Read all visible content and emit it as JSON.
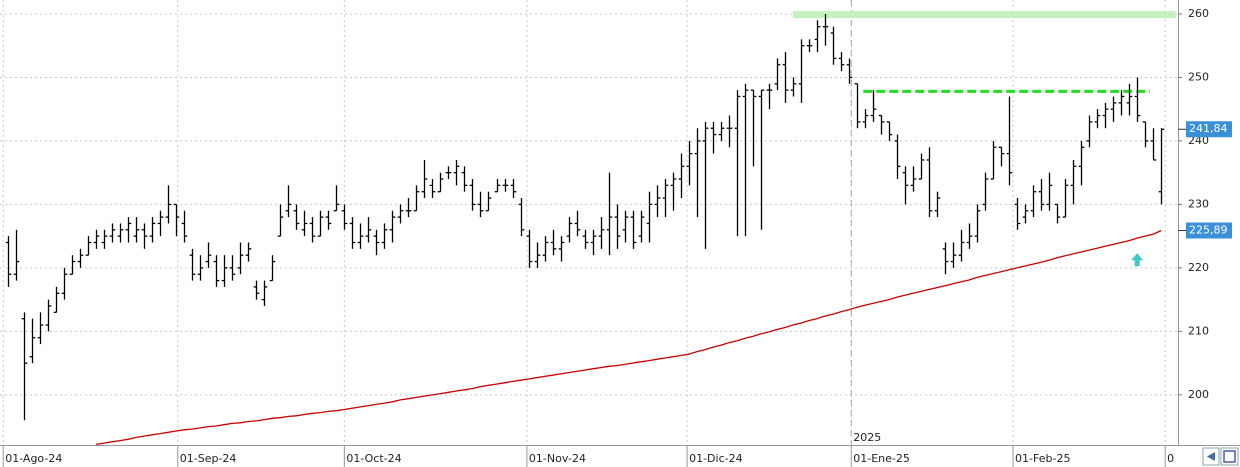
{
  "chart_data": {
    "type": "ohlc",
    "ylim": [
      192.1,
      262.2
    ],
    "yticks": [
      200,
      210,
      220,
      230,
      240,
      250,
      260
    ],
    "xlim": [
      -1,
      146.1
    ],
    "xticks": [
      {
        "value": -0.6,
        "label": "01-Ago-24"
      },
      {
        "value": 21.2,
        "label": "01-Sep-24"
      },
      {
        "value": 42,
        "label": "01-Oct-24"
      },
      {
        "value": 64.8,
        "label": "01-Nov-24"
      },
      {
        "value": 84.8,
        "label": "01-Dic-24"
      },
      {
        "value": 105.3,
        "label": "01-Ene-25"
      },
      {
        "value": 125.5,
        "label": "01-Feb-25"
      },
      {
        "value": 144.5,
        "label": "0"
      }
    ],
    "grid": true,
    "color": "#000000",
    "ohlc": [
      [
        224,
        225,
        217,
        219
      ],
      [
        219,
        226,
        218,
        221
      ],
      [
        212,
        213,
        196,
        205
      ],
      [
        206,
        212,
        205,
        209
      ],
      [
        209,
        213,
        208,
        211
      ],
      [
        211,
        215,
        210,
        214
      ],
      [
        213,
        217,
        213,
        216
      ],
      [
        216,
        220,
        215,
        219
      ],
      [
        219,
        222,
        219,
        221
      ],
      [
        221,
        223,
        220,
        222
      ],
      [
        222,
        225,
        222,
        224
      ],
      [
        224,
        226,
        223,
        225
      ],
      [
        224,
        226,
        223,
        225
      ],
      [
        225,
        227,
        224,
        226
      ],
      [
        225,
        227,
        224,
        226
      ],
      [
        226,
        228,
        224,
        227
      ],
      [
        225,
        228,
        224,
        226
      ],
      [
        226,
        227,
        223,
        225
      ],
      [
        225,
        228,
        224,
        227
      ],
      [
        227,
        229,
        225,
        228
      ],
      [
        228,
        233,
        227,
        230
      ],
      [
        230,
        230,
        225,
        228
      ],
      [
        227,
        229,
        224,
        225
      ],
      [
        222,
        223,
        218,
        219
      ],
      [
        219,
        222,
        218,
        220
      ],
      [
        221,
        224,
        220,
        222
      ],
      [
        221,
        222,
        217,
        218
      ],
      [
        218,
        222,
        217,
        220
      ],
      [
        220,
        222,
        218,
        219
      ],
      [
        220,
        224,
        219,
        222
      ],
      [
        222,
        224,
        221,
        223
      ],
      [
        217,
        218,
        215,
        216
      ],
      [
        215,
        218,
        214,
        217
      ],
      [
        218,
        222,
        218,
        221
      ],
      [
        225,
        230,
        225,
        228
      ],
      [
        229,
        233,
        228,
        230
      ],
      [
        229,
        230,
        226,
        227
      ],
      [
        226,
        229,
        225,
        227
      ],
      [
        227,
        228,
        224,
        225
      ],
      [
        225,
        229,
        225,
        228
      ],
      [
        228,
        229,
        226,
        227
      ],
      [
        229,
        233,
        229,
        230
      ],
      [
        229,
        230,
        226,
        227
      ],
      [
        227,
        228,
        223,
        224
      ],
      [
        224,
        227,
        223,
        225
      ],
      [
        225,
        228,
        224,
        226
      ],
      [
        225,
        226,
        222,
        224
      ],
      [
        224,
        227,
        223,
        226
      ],
      [
        226,
        229,
        224,
        228
      ],
      [
        228,
        230,
        227,
        229
      ],
      [
        229,
        231,
        228,
        229
      ],
      [
        229,
        233,
        229,
        232
      ],
      [
        232,
        237,
        231,
        234
      ],
      [
        233,
        234,
        231,
        232
      ],
      [
        232,
        235,
        232,
        234
      ],
      [
        235,
        236,
        234,
        235
      ],
      [
        235,
        237,
        233,
        236
      ],
      [
        235,
        236,
        232,
        233
      ],
      [
        233,
        234,
        229,
        230
      ],
      [
        230,
        232,
        228,
        229
      ],
      [
        229,
        232,
        229,
        231
      ],
      [
        232,
        234,
        232,
        233
      ],
      [
        233,
        234,
        232,
        233
      ],
      [
        233,
        234,
        231,
        232
      ],
      [
        230,
        231,
        225,
        226
      ],
      [
        225,
        226,
        220,
        221
      ],
      [
        221,
        224,
        220,
        222
      ],
      [
        222,
        225,
        221,
        224
      ],
      [
        224,
        226,
        222,
        223
      ],
      [
        223,
        225,
        221,
        224
      ],
      [
        225,
        228,
        224,
        227
      ],
      [
        227,
        229,
        225,
        226
      ],
      [
        225,
        226,
        223,
        224
      ],
      [
        224,
        226,
        222,
        225
      ],
      [
        225,
        228,
        223,
        226
      ],
      [
        226,
        235,
        222,
        228
      ],
      [
        228,
        230,
        223,
        225
      ],
      [
        226,
        229,
        224,
        228
      ],
      [
        228,
        229,
        223,
        224
      ],
      [
        225,
        229,
        224,
        228
      ],
      [
        227,
        232,
        224,
        230
      ],
      [
        230,
        233,
        228,
        231
      ],
      [
        231,
        234,
        228,
        233
      ],
      [
        233,
        235,
        229,
        234
      ],
      [
        234,
        238,
        231,
        236
      ],
      [
        236,
        240,
        233,
        238
      ],
      [
        238,
        242,
        228,
        240
      ],
      [
        240,
        243,
        223,
        242
      ],
      [
        242,
        243,
        238,
        241
      ],
      [
        241,
        243,
        240,
        242
      ],
      [
        242,
        244,
        239,
        242
      ],
      [
        242,
        248,
        225,
        247
      ],
      [
        247,
        249,
        225,
        248
      ],
      [
        248,
        248,
        236,
        247
      ],
      [
        247,
        248,
        226,
        248
      ],
      [
        248,
        249,
        245,
        248
      ],
      [
        249,
        253,
        248,
        252
      ],
      [
        252,
        254,
        246,
        248
      ],
      [
        248,
        250,
        247,
        249
      ],
      [
        249,
        256,
        246,
        255
      ],
      [
        255,
        256,
        254,
        255
      ],
      [
        256,
        259,
        254,
        258
      ],
      [
        258,
        260,
        255,
        258
      ],
      [
        257,
        258,
        252,
        253
      ],
      [
        253,
        254,
        251,
        252
      ],
      [
        252,
        253,
        249,
        250
      ],
      [
        249,
        249,
        242,
        243
      ],
      [
        243,
        245,
        242,
        244
      ],
      [
        244,
        248,
        243,
        245
      ],
      [
        244,
        244,
        241,
        243
      ],
      [
        243,
        243,
        240,
        241
      ],
      [
        240,
        241,
        234,
        236
      ],
      [
        235,
        236,
        230,
        233
      ],
      [
        233,
        236,
        232,
        234
      ],
      [
        234,
        238,
        234,
        237
      ],
      [
        237,
        239,
        228,
        229
      ],
      [
        229,
        232,
        228,
        231
      ],
      [
        223,
        224,
        219,
        221
      ],
      [
        221,
        224,
        220,
        222
      ],
      [
        222,
        226,
        221,
        224
      ],
      [
        224,
        227,
        223,
        225
      ],
      [
        225,
        230,
        224,
        229
      ],
      [
        230,
        235,
        229,
        234
      ],
      [
        234,
        240,
        234,
        239
      ],
      [
        239,
        239,
        236,
        238
      ],
      [
        238,
        247,
        233,
        235
      ],
      [
        230,
        231,
        226,
        227
      ],
      [
        228,
        230,
        227,
        229
      ],
      [
        229,
        233,
        228,
        232
      ],
      [
        232,
        234,
        229,
        230
      ],
      [
        230,
        235,
        229,
        233
      ],
      [
        230,
        230,
        227,
        228
      ],
      [
        228,
        234,
        228,
        233
      ],
      [
        233,
        237,
        230,
        236
      ],
      [
        236,
        240,
        233,
        239
      ],
      [
        240,
        244,
        239,
        243
      ],
      [
        243,
        245,
        242,
        244
      ],
      [
        244,
        246,
        242,
        245
      ],
      [
        245,
        247,
        243,
        246
      ],
      [
        246,
        248,
        244,
        247
      ],
      [
        246,
        249,
        244,
        247
      ],
      [
        247,
        250,
        243,
        244
      ],
      [
        243,
        243,
        239,
        240
      ],
      [
        240,
        242,
        237,
        237
      ],
      [
        232,
        242,
        230,
        241.84
      ]
    ],
    "ma": {
      "color": "#cc0000",
      "values": [
        null,
        null,
        null,
        null,
        null,
        null,
        null,
        null,
        null,
        null,
        null,
        192.2,
        192.4,
        192.6,
        192.8,
        193.0,
        193.3,
        193.5,
        193.7,
        193.9,
        194.1,
        194.3,
        194.5,
        194.6,
        194.8,
        195.0,
        195.1,
        195.3,
        195.5,
        195.6,
        195.8,
        195.9,
        196.1,
        196.3,
        196.4,
        196.6,
        196.7,
        196.9,
        197.1,
        197.2,
        197.4,
        197.5,
        197.7,
        197.9,
        198.1,
        198.3,
        198.5,
        198.7,
        198.9,
        199.2,
        199.4,
        199.6,
        199.8,
        200.0,
        200.2,
        200.4,
        200.6,
        200.8,
        201.0,
        201.3,
        201.5,
        201.7,
        201.9,
        202.1,
        202.3,
        202.5,
        202.7,
        202.9,
        203.1,
        203.3,
        203.5,
        203.7,
        203.9,
        204.1,
        204.3,
        204.5,
        204.6,
        204.8,
        205.0,
        205.2,
        205.4,
        205.6,
        205.8,
        206.0,
        206.2,
        206.4,
        206.8,
        207.1,
        207.5,
        207.8,
        208.2,
        208.5,
        208.9,
        209.2,
        209.6,
        209.9,
        210.3,
        210.6,
        211.0,
        211.3,
        211.7,
        212.0,
        212.4,
        212.7,
        213.1,
        213.4,
        213.8,
        214.1,
        214.4,
        214.7,
        215.0,
        215.4,
        215.7,
        216.0,
        216.3,
        216.6,
        216.9,
        217.2,
        217.5,
        217.8,
        218.1,
        218.5,
        218.8,
        219.1,
        219.4,
        219.7,
        220.0,
        220.3,
        220.6,
        220.9,
        221.2,
        221.6,
        221.9,
        222.2,
        222.5,
        222.8,
        223.1,
        223.4,
        223.7,
        224.0,
        224.3,
        224.7,
        225.0,
        225.3,
        225.89
      ]
    },
    "hlines": [
      {
        "value": 259.9,
        "from": 98,
        "to": 145.8,
        "style": "solid",
        "color": "#c4f2bc"
      },
      {
        "value": 247.8,
        "from": 106.8,
        "to": 142.6,
        "style": "dashed",
        "color": "#22dd22"
      }
    ],
    "price_labels": [
      {
        "value": 241.84,
        "label": "241,84",
        "color": "#3a8fd9"
      },
      {
        "value": 225.89,
        "label": "225,89",
        "color": "#3a8fd9"
      }
    ],
    "year_marker": {
      "x": 105.3,
      "label": "2025"
    },
    "arrow": {
      "x": 141,
      "y": 221.2,
      "color": "#3cc8c8"
    }
  }
}
